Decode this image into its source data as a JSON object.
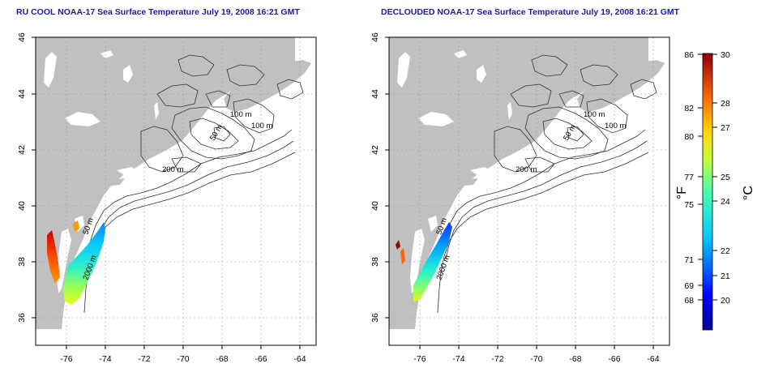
{
  "panels": [
    {
      "title": "RU COOL NOAA-17 Sea Surface Temperature July 19, 2008 16:21 GMT",
      "x_ticks": [
        "-76",
        "-74",
        "-72",
        "-70",
        "-68",
        "-66",
        "-64"
      ],
      "y_ticks": [
        "36",
        "38",
        "40",
        "42",
        "44",
        "46"
      ]
    },
    {
      "title": "DECLOUDED NOAA-17 Sea Surface Temperature July 19, 2008 16:21 GMT",
      "x_ticks": [
        "-76",
        "-74",
        "-72",
        "-70",
        "-68",
        "-66",
        "-64"
      ],
      "y_ticks": [
        "36",
        "38",
        "40",
        "42",
        "44",
        "46"
      ]
    }
  ],
  "contour_labels": [
    "100 m",
    "100 m",
    "50 m",
    "200 m",
    "50 m",
    "2000 m"
  ],
  "colorbar": {
    "f_ticks": [
      "86",
      "82",
      "80",
      "77",
      "75",
      "71",
      "69",
      "68"
    ],
    "c_ticks": [
      "30",
      "28",
      "27",
      "25",
      "24",
      "22",
      "21",
      "20"
    ],
    "f_unit": "°F",
    "c_unit": "°C"
  },
  "colors": {
    "land": "#c0c0c0",
    "title": "#1a1aa6",
    "grid": "#999999"
  }
}
